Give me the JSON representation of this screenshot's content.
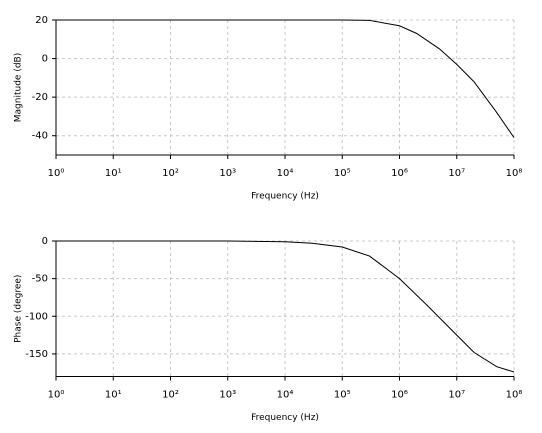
{
  "chart_data": [
    {
      "type": "line",
      "xlabel": "Frequency (Hz)",
      "ylabel": "Magnitude (dB)",
      "log_x": true,
      "grid": true,
      "color": "#000000",
      "x": [
        1,
        10,
        100,
        1000,
        10000,
        100000,
        300000,
        1000000,
        2000000,
        5000000,
        10000000,
        20000000,
        50000000,
        100000000
      ],
      "values": [
        20,
        20,
        20,
        20,
        20,
        20,
        19.8,
        17,
        13,
        5,
        -3,
        -12,
        -28,
        -41
      ],
      "xlim": [
        1,
        100000000
      ],
      "xticks": [
        {
          "value": 1,
          "label": "10⁰"
        },
        {
          "value": 10,
          "label": "10¹"
        },
        {
          "value": 100,
          "label": "10²"
        },
        {
          "value": 1000,
          "label": "10³"
        },
        {
          "value": 10000,
          "label": "10⁴"
        },
        {
          "value": 100000,
          "label": "10⁵"
        },
        {
          "value": 1000000,
          "label": "10⁶"
        },
        {
          "value": 10000000,
          "label": "10⁷"
        },
        {
          "value": 100000000,
          "label": "10⁸"
        }
      ],
      "ylim": [
        -50,
        20
      ],
      "yticks": [
        -40,
        -20,
        0,
        20
      ]
    },
    {
      "type": "line",
      "xlabel": "Frequency (Hz)",
      "ylabel": "Phase (degree)",
      "log_x": true,
      "grid": true,
      "color": "#000000",
      "x": [
        1,
        10,
        100,
        1000,
        10000,
        30000,
        100000,
        300000,
        1000000,
        3000000,
        10000000,
        20000000,
        50000000,
        100000000
      ],
      "values": [
        0,
        0,
        0,
        0,
        -1,
        -3,
        -8,
        -20,
        -50,
        -85,
        -125,
        -148,
        -167,
        -174
      ],
      "xlim": [
        1,
        100000000
      ],
      "xticks": [
        {
          "value": 1,
          "label": "10⁰"
        },
        {
          "value": 10,
          "label": "10¹"
        },
        {
          "value": 100,
          "label": "10²"
        },
        {
          "value": 1000,
          "label": "10³"
        },
        {
          "value": 10000,
          "label": "10⁴"
        },
        {
          "value": 100000,
          "label": "10⁵"
        },
        {
          "value": 1000000,
          "label": "10⁶"
        },
        {
          "value": 10000000,
          "label": "10⁷"
        },
        {
          "value": 100000000,
          "label": "10⁸"
        }
      ],
      "ylim": [
        -180,
        0
      ],
      "yticks": [
        -150,
        -100,
        -50,
        0
      ]
    }
  ]
}
